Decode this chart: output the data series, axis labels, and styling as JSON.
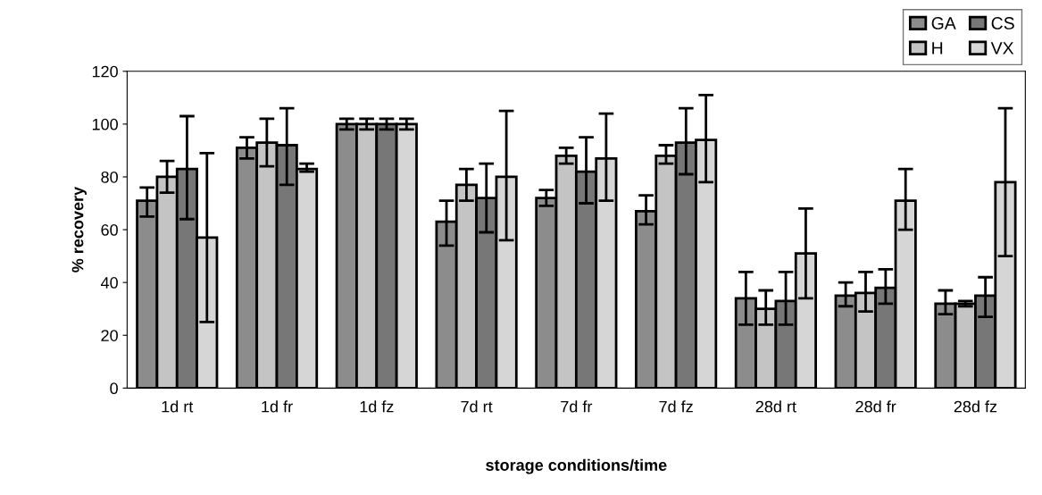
{
  "chart_data": {
    "type": "bar",
    "xlabel": "storage conditions/time",
    "ylabel": "% recovery",
    "categories": [
      "1d rt",
      "1d fr",
      "1d fz",
      "7d rt",
      "7d fr",
      "7d fz",
      "28d rt",
      "28d fr",
      "28d fz"
    ],
    "series": [
      {
        "name": "GA",
        "color": "#8c8c8c",
        "values": [
          71,
          91,
          100,
          63,
          72,
          67,
          34,
          35,
          32
        ],
        "errors": [
          [
            65,
            76
          ],
          [
            87,
            95
          ],
          [
            98,
            102
          ],
          [
            54,
            71
          ],
          [
            69,
            75
          ],
          [
            62,
            73
          ],
          [
            24,
            44
          ],
          [
            31,
            40
          ],
          [
            28,
            37
          ]
        ]
      },
      {
        "name": "H",
        "color": "#c4c4c4",
        "values": [
          80,
          93,
          100,
          77,
          88,
          88,
          30,
          36,
          32
        ],
        "errors": [
          [
            74,
            86
          ],
          [
            84,
            102
          ],
          [
            98,
            102
          ],
          [
            71,
            83
          ],
          [
            85,
            91
          ],
          [
            85,
            92
          ],
          [
            24,
            37
          ],
          [
            29,
            44
          ],
          [
            31,
            33
          ]
        ]
      },
      {
        "name": "CS",
        "color": "#777777",
        "values": [
          83,
          92,
          100,
          72,
          82,
          93,
          33,
          38,
          35
        ],
        "errors": [
          [
            64,
            103
          ],
          [
            77,
            106
          ],
          [
            98,
            102
          ],
          [
            59,
            85
          ],
          [
            70,
            95
          ],
          [
            81,
            106
          ],
          [
            24,
            44
          ],
          [
            32,
            45
          ],
          [
            27,
            42
          ]
        ]
      },
      {
        "name": "VX",
        "color": "#d6d6d6",
        "values": [
          57,
          83,
          100,
          80,
          87,
          94,
          51,
          71,
          78
        ],
        "errors": [
          [
            25,
            89
          ],
          [
            82,
            85
          ],
          [
            98,
            102
          ],
          [
            56,
            105
          ],
          [
            71,
            104
          ],
          [
            78,
            111
          ],
          [
            34,
            68
          ],
          [
            60,
            83
          ],
          [
            50,
            106
          ]
        ]
      }
    ],
    "ylim": [
      0,
      120
    ],
    "yticks": [
      0,
      20,
      40,
      60,
      80,
      100,
      120
    ],
    "grid": false,
    "legend": "top right"
  }
}
